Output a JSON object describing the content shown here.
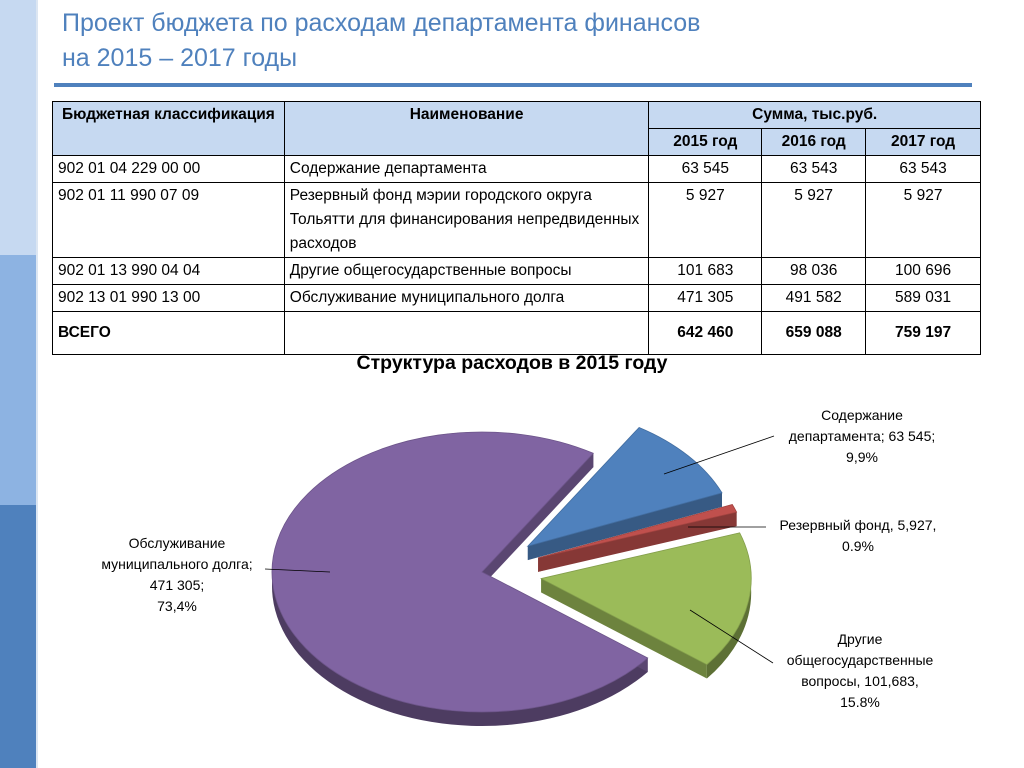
{
  "title": {
    "line1": "Проект бюджета по расходам департамента финансов",
    "line2": "на 2015 – 2017 годы"
  },
  "table": {
    "headers": {
      "classification": "Бюджетная классификация",
      "name": "Наименование",
      "sum": "Сумма, тыс.руб.",
      "years": [
        "2015 год",
        "2016 год",
        "2017 год"
      ]
    },
    "rows": [
      {
        "code": "902 01 04 229 00 00",
        "name": "Содержание департамента",
        "v2015": "63 545",
        "v2016": "63 543",
        "v2017": "63 543"
      },
      {
        "code": "902 01 11 990 07 09",
        "name": "Резервный фонд мэрии городского округа Тольятти для финансирования непредвиденных расходов",
        "v2015": "5 927",
        "v2016": "5 927",
        "v2017": "5 927"
      },
      {
        "code": "902 01 13 990 04 04",
        "name": "Другие общегосударственные вопросы",
        "v2015": "101 683",
        "v2016": "98 036",
        "v2017": "100 696"
      },
      {
        "code": "902 13 01 990 13 00",
        "name": "Обслуживание муниципального долга",
        "v2015": "471 305",
        "v2016": "491 582",
        "v2017": "589 031"
      }
    ],
    "total": {
      "label": "ВСЕГО",
      "name": "",
      "v2015": "642 460",
      "v2016": "659 088",
      "v2017": "759 197"
    }
  },
  "chart_data": {
    "type": "pie",
    "title": "Структура расходов в 2015 году",
    "slices": [
      {
        "value": 63545,
        "percent": 9.9,
        "color": "#4f81bd",
        "label_lines": [
          "Содержание",
          "департамента; 63 545;",
          "9,9%"
        ]
      },
      {
        "value": 5927,
        "percent": 0.9,
        "color": "#c0504d",
        "label_lines": [
          "Резервный фонд, 5,927,",
          "0.9%"
        ]
      },
      {
        "value": 101683,
        "percent": 15.8,
        "color": "#9bbb59",
        "label_lines": [
          "Другие",
          "общегосударственные",
          "вопросы, 101,683,",
          "15.8%"
        ]
      },
      {
        "value": 471305,
        "percent": 73.4,
        "color": "#8064a2",
        "label_lines": [
          "Обслуживание",
          "муниципального долга;",
          "471 305;",
          "73,4%"
        ]
      }
    ]
  }
}
